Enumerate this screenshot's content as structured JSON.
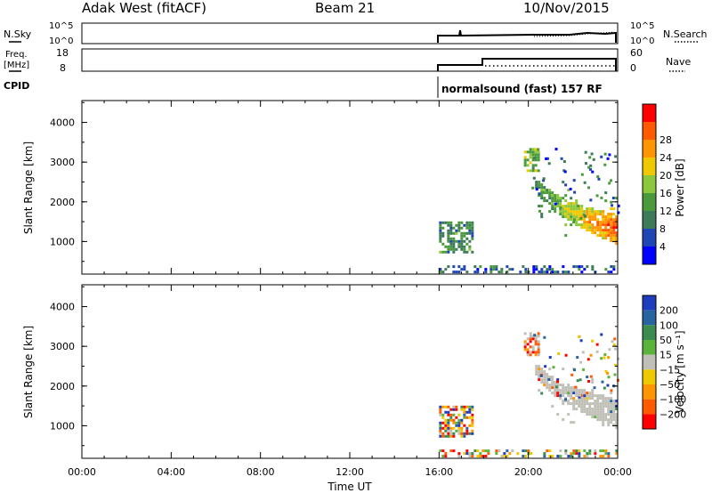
{
  "header": {
    "station": "Adak West (fitACF)",
    "beam": "Beam 21",
    "date": "10/Nov/2015"
  },
  "panels": {
    "nsky": {
      "label": "N.Sky",
      "ticks": [
        "10^5",
        "10^0"
      ]
    },
    "nsearch": {
      "label": "N.Search",
      "ticks": [
        "10^5",
        "10^0"
      ]
    },
    "freq": {
      "label_line1": "Freq.",
      "label_line2": "[MHz]",
      "ticks": [
        "18",
        "8"
      ]
    },
    "nave": {
      "label": "Nave",
      "ticks": [
        "60",
        "0"
      ]
    },
    "cpid": {
      "label": "CPID",
      "text": "normalsound (fast) 157 RF"
    }
  },
  "colors": {
    "power": [
      "#0000ff",
      "#1e46b4",
      "#3c7a5a",
      "#4a9a3c",
      "#8cc83c",
      "#f0c800",
      "#ff9600",
      "#ff5a00",
      "#ff0000"
    ],
    "velocity": [
      "#ff0000",
      "#ff5a00",
      "#ff9600",
      "#f0c800",
      "#c0c0b8",
      "#5ab43c",
      "#3c8c50",
      "#2864a0",
      "#1e3cbe"
    ]
  },
  "chart_data": [
    {
      "type": "heatmap",
      "name": "power-panel",
      "xlabel": "Time UT",
      "ylabel": "Slant Range [km]",
      "x_ticks": [
        "00:00",
        "04:00",
        "08:00",
        "12:00",
        "16:00",
        "20:00",
        "00:00"
      ],
      "y_ticks": [
        1000,
        2000,
        3000,
        4000
      ],
      "ylim": [
        180,
        4550
      ],
      "colorbar": {
        "label": "Power [dB]",
        "ticks": [
          4,
          8,
          12,
          16,
          20,
          24,
          28
        ]
      },
      "regions": [
        {
          "t": [
            16.0,
            24.0
          ],
          "r": [
            200,
            380
          ],
          "kind": "ground-noise"
        },
        {
          "t": [
            16.0,
            17.5
          ],
          "r": [
            700,
            1500
          ],
          "kind": "patch",
          "level": 10
        },
        {
          "t": [
            19.8,
            20.5
          ],
          "r": [
            2750,
            3300
          ],
          "kind": "patch",
          "level": 14
        },
        {
          "t": [
            20.3,
            24.0
          ],
          "r": [
            850,
            2500
          ],
          "kind": "arc",
          "level": 26
        }
      ]
    },
    {
      "type": "heatmap",
      "name": "velocity-panel",
      "xlabel": "Time UT",
      "ylabel": "Slant Range [km]",
      "x_ticks": [
        "00:00",
        "04:00",
        "08:00",
        "12:00",
        "16:00",
        "20:00",
        "00:00"
      ],
      "y_ticks": [
        1000,
        2000,
        3000,
        4000
      ],
      "ylim": [
        180,
        4550
      ],
      "colorbar": {
        "label": "Velocity [m s⁻¹]",
        "ticks": [
          "200",
          "100",
          "50",
          "15",
          "−15",
          "−50",
          "−100",
          "−200"
        ]
      },
      "regions": [
        {
          "t": [
            16.0,
            24.0
          ],
          "r": [
            200,
            380
          ],
          "kind": "ground-noise"
        },
        {
          "t": [
            16.0,
            17.5
          ],
          "r": [
            700,
            1500
          ],
          "kind": "patch"
        },
        {
          "t": [
            19.8,
            20.5
          ],
          "r": [
            2750,
            3300
          ],
          "kind": "patch"
        },
        {
          "t": [
            20.3,
            24.0
          ],
          "r": [
            850,
            2500
          ],
          "kind": "arc"
        }
      ]
    }
  ]
}
